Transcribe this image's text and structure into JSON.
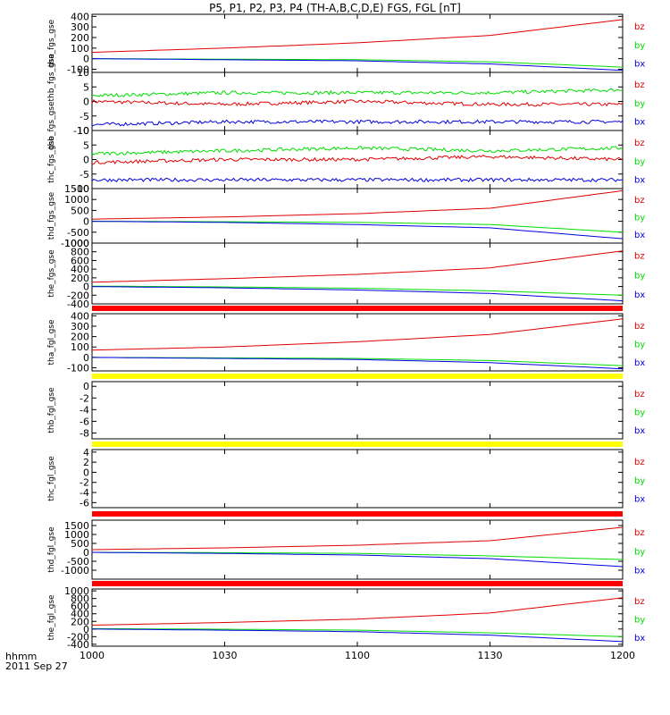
{
  "title": "P5, P1, P2, P3, P4 (TH-A,B,C,D,E) FGS, FGL [nT]",
  "colors": {
    "bz": "#e00000",
    "by": "#00dd00",
    "bx": "#0000e0",
    "red_bar": "#ff0000",
    "yellow_bar": "#ffff00",
    "axis": "#000000"
  },
  "footer": {
    "line1": "hhmm",
    "line2": "2011 Sep 27"
  },
  "chart_data": [
    {
      "type": "line",
      "name": "tha_fgs_gse",
      "ylim": [
        -130,
        420
      ],
      "yticks": [
        -100,
        0,
        100,
        200,
        300,
        400
      ],
      "ytick_labels": [
        "-100",
        "0",
        "100",
        "200",
        "300",
        "400"
      ],
      "x": [
        1000,
        1030,
        1100,
        1130,
        1200
      ],
      "xtick_labels": [
        "1000",
        "1030",
        "1100",
        "1130",
        "1200"
      ],
      "series": [
        {
          "name": "bz",
          "values": [
            60,
            100,
            150,
            220,
            370
          ]
        },
        {
          "name": "by",
          "values": [
            0,
            -5,
            -10,
            -30,
            -80
          ]
        },
        {
          "name": "bx",
          "values": [
            0,
            -10,
            -20,
            -50,
            -110
          ]
        }
      ]
    },
    {
      "type": "line",
      "name": "thb_fgs_gsethb_fgs_gse",
      "ylim": [
        -10,
        10
      ],
      "yticks": [
        -10,
        -5,
        0,
        5,
        10
      ],
      "ytick_labels": [
        "-10",
        "-5",
        "0",
        "5",
        "10"
      ],
      "series": [
        {
          "name": "bz",
          "values": [
            0,
            -1,
            0,
            -1,
            -1
          ]
        },
        {
          "name": "by",
          "values": [
            2,
            3,
            3,
            3,
            4
          ]
        },
        {
          "name": "bx",
          "values": [
            -8,
            -7,
            -7,
            -7,
            -7
          ]
        }
      ]
    },
    {
      "type": "line",
      "name": "thc_fgs_gse",
      "ylim": [
        -10,
        10
      ],
      "yticks": [
        -10,
        -5,
        0,
        5,
        10
      ],
      "ytick_labels": [
        "-10",
        "-5",
        "0",
        "5",
        "10"
      ],
      "series": [
        {
          "name": "bz",
          "values": [
            -1,
            0,
            0,
            1,
            0
          ]
        },
        {
          "name": "by",
          "values": [
            2,
            3,
            4,
            3,
            4
          ]
        },
        {
          "name": "bx",
          "values": [
            -7,
            -7,
            -7,
            -7,
            -7
          ]
        }
      ]
    },
    {
      "type": "line",
      "name": "thd_fgs_gse",
      "ylim": [
        -1000,
        1500
      ],
      "yticks": [
        -1000,
        -500,
        0,
        500,
        1000,
        1500
      ],
      "ytick_labels": [
        "-1000",
        "-500",
        "0",
        "500",
        "1000",
        "1500"
      ],
      "series": [
        {
          "name": "bz",
          "values": [
            100,
            200,
            350,
            600,
            1400
          ]
        },
        {
          "name": "by",
          "values": [
            0,
            -20,
            -50,
            -150,
            -500
          ]
        },
        {
          "name": "bx",
          "values": [
            0,
            -50,
            -150,
            -300,
            -800
          ]
        }
      ]
    },
    {
      "type": "line",
      "name": "the_fgs_gse",
      "ylim": [
        -400,
        1000
      ],
      "yticks": [
        -400,
        -200,
        0,
        200,
        400,
        600,
        800,
        1000
      ],
      "ytick_labels": [
        "-400",
        "-200",
        "0",
        "200",
        "400",
        "600",
        "800",
        "1000"
      ],
      "series": [
        {
          "name": "bz",
          "values": [
            100,
            180,
            280,
            430,
            820
          ]
        },
        {
          "name": "by",
          "values": [
            10,
            -10,
            -40,
            -100,
            -200
          ]
        },
        {
          "name": "bx",
          "values": [
            0,
            -30,
            -80,
            -160,
            -330
          ]
        }
      ]
    },
    {
      "type": "line",
      "name": "tha_fgl_gse",
      "ylim": [
        -130,
        420
      ],
      "yticks": [
        -100,
        0,
        100,
        200,
        300,
        400
      ],
      "ytick_labels": [
        "-100",
        "0",
        "100",
        "200",
        "300",
        "400"
      ],
      "series": [
        {
          "name": "bz",
          "values": [
            70,
            100,
            150,
            220,
            370
          ]
        },
        {
          "name": "by",
          "values": [
            0,
            -5,
            -10,
            -30,
            -80
          ]
        },
        {
          "name": "bx",
          "values": [
            0,
            -10,
            -20,
            -50,
            -110
          ]
        }
      ]
    },
    {
      "type": "line",
      "name": "thb_fgl_gse",
      "ylim": [
        -9,
        0.8
      ],
      "yticks": [
        -8,
        -6,
        -4,
        -2,
        0
      ],
      "ytick_labels": [
        "-8",
        "-6",
        "-4",
        "-2",
        "0"
      ],
      "series": []
    },
    {
      "type": "line",
      "name": "thc_fgl_gse",
      "ylim": [
        -7,
        4.5
      ],
      "yticks": [
        -6,
        -4,
        -2,
        0,
        2,
        4
      ],
      "ytick_labels": [
        "-6",
        "-4",
        "-2",
        "0",
        "2",
        "4"
      ],
      "series": []
    },
    {
      "type": "line",
      "name": "thd_fgl_gse",
      "ylim": [
        -1500,
        1800
      ],
      "yticks": [
        -1000,
        -500,
        0,
        500,
        1000,
        1500
      ],
      "ytick_labels": [
        "-1000",
        "-500",
        "0",
        "500",
        "1000",
        "1500"
      ],
      "series": [
        {
          "name": "bz",
          "values": [
            150,
            250,
            400,
            650,
            1400
          ]
        },
        {
          "name": "by",
          "values": [
            0,
            -20,
            -60,
            -200,
            -400
          ]
        },
        {
          "name": "bx",
          "values": [
            0,
            -60,
            -150,
            -350,
            -800
          ]
        }
      ]
    },
    {
      "type": "line",
      "name": "the_fgl_gse",
      "ylim": [
        -450,
        1050
      ],
      "yticks": [
        -400,
        -200,
        0,
        200,
        400,
        600,
        800,
        1000
      ],
      "ytick_labels": [
        "-400",
        "-200",
        "0",
        "200",
        "400",
        "600",
        "800",
        "1000"
      ],
      "series": [
        {
          "name": "bz",
          "values": [
            100,
            170,
            260,
            420,
            820
          ]
        },
        {
          "name": "by",
          "values": [
            10,
            -5,
            -30,
            -100,
            -200
          ]
        },
        {
          "name": "bx",
          "values": [
            0,
            -30,
            -70,
            -160,
            -330
          ]
        }
      ]
    }
  ]
}
